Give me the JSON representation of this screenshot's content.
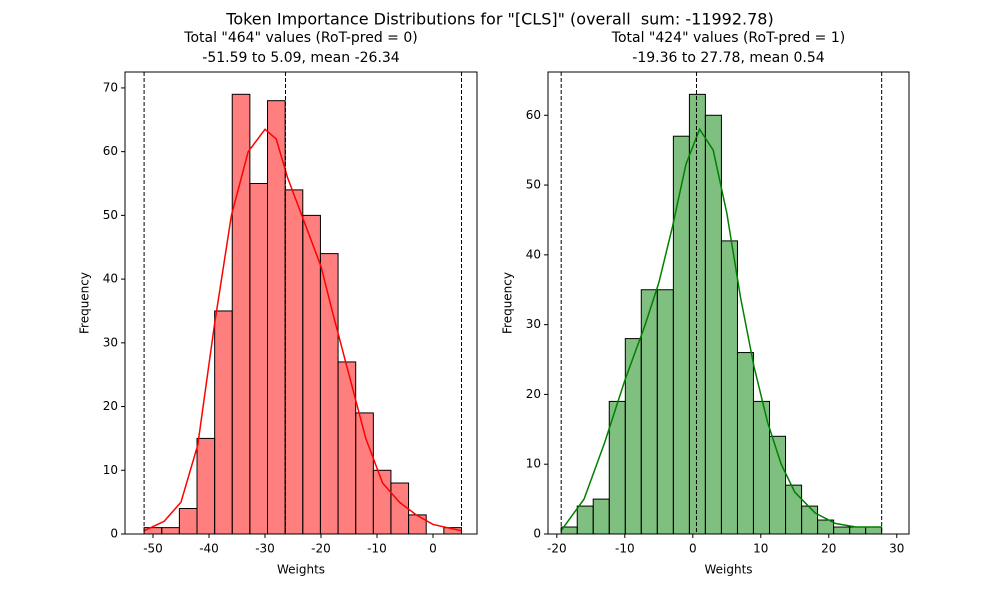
{
  "suptitle": "Token Importance Distributions for \"[CLS]\" (overall  sum: -11992.78)",
  "chart_data": [
    {
      "type": "histogram",
      "title": "Total \"464\" values (RoT-pred = 0)",
      "subtitle": "-51.59 to 5.09, mean -26.34",
      "xlabel": "Weights",
      "ylabel": "Frequency",
      "color": "red",
      "bins": [
        -51.59,
        -48.44,
        -45.29,
        -42.14,
        -38.99,
        -35.85,
        -32.7,
        -29.55,
        -26.4,
        -23.25,
        -20.1,
        -16.95,
        -13.8,
        -10.65,
        -7.51,
        -4.36,
        -1.21,
        1.94,
        5.09
      ],
      "values": [
        1,
        1,
        4,
        15,
        35,
        69,
        55,
        68,
        54,
        50,
        44,
        27,
        19,
        10,
        8,
        3,
        0,
        1
      ],
      "kde": {
        "x": [
          -51.59,
          -48,
          -45,
          -42,
          -39,
          -36,
          -33,
          -30,
          -28,
          -26,
          -23,
          -20,
          -18,
          -15,
          -12,
          -9,
          -6,
          -3,
          0,
          5.09
        ],
        "values": [
          0.5,
          2,
          5,
          14,
          33,
          50,
          60,
          63.5,
          62,
          56,
          49,
          42,
          35,
          25,
          15,
          8,
          5,
          3,
          1.5,
          0.5
        ]
      },
      "vlines": [
        -51.59,
        -26.34,
        5.09
      ],
      "xlim": [
        -55,
        7.86
      ],
      "ylim": [
        0,
        72.5
      ],
      "xticks": [
        -50,
        -40,
        -30,
        -20,
        -10,
        0
      ],
      "yticks": [
        0,
        10,
        20,
        30,
        40,
        50,
        60,
        70
      ]
    },
    {
      "type": "histogram",
      "title": "Total \"424\" values (RoT-pred = 1)",
      "subtitle": "-19.36 to 27.78, mean 0.54",
      "xlabel": "Weights",
      "ylabel": "Frequency",
      "color": "green",
      "bins": [
        -19.36,
        -17.0,
        -14.65,
        -12.29,
        -9.93,
        -7.58,
        -5.22,
        -2.86,
        -0.5,
        1.85,
        4.21,
        6.57,
        8.92,
        11.28,
        13.64,
        16.0,
        18.35,
        20.71,
        23.07,
        25.42,
        27.78
      ],
      "values": [
        1,
        4,
        5,
        19,
        28,
        35,
        35,
        57,
        63,
        60,
        42,
        26,
        19,
        14,
        7,
        4,
        2,
        1,
        1,
        1
      ],
      "kde": {
        "x": [
          -19.36,
          -16,
          -13,
          -10,
          -7,
          -5,
          -3,
          -1,
          1,
          3,
          5,
          7,
          9,
          11,
          13,
          15,
          18,
          21,
          24,
          27.78
        ],
        "values": [
          0.5,
          5,
          13,
          22,
          30,
          36,
          44,
          53,
          58,
          55,
          46,
          34,
          24,
          16,
          10,
          6,
          3,
          1.5,
          1,
          1
        ]
      },
      "vlines": [
        -19.36,
        0.54,
        27.78
      ],
      "xlim": [
        -21.3,
        31.8
      ],
      "ylim": [
        0,
        66.2
      ],
      "xticks": [
        -20,
        -10,
        0,
        10,
        20,
        30
      ],
      "yticks": [
        0,
        10,
        20,
        30,
        40,
        50,
        60
      ]
    }
  ]
}
